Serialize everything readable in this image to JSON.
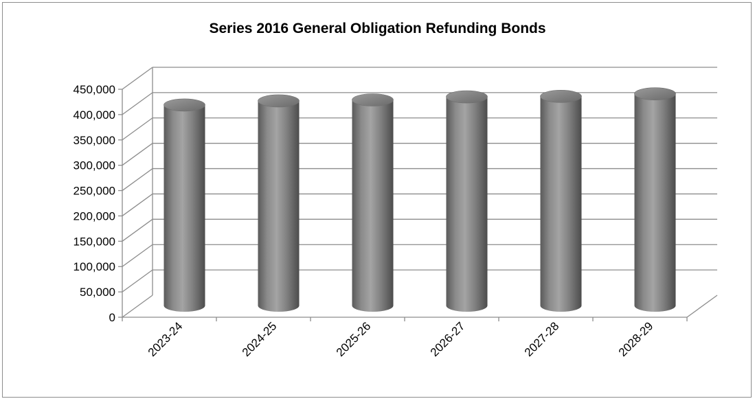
{
  "chart_data": {
    "type": "bar",
    "style": "3d-cylinder",
    "title": "Series 2016 General Obligation Refunding Bonds",
    "xlabel": "",
    "ylabel": "",
    "categories": [
      "2023-24",
      "2024-25",
      "2025-26",
      "2026-27",
      "2027-28",
      "2028-29"
    ],
    "series": [
      {
        "values": [
          400000,
          408000,
          410000,
          416000,
          417000,
          422000
        ]
      }
    ],
    "ylim": [
      0,
      450000
    ],
    "yticks": [
      0,
      50000,
      100000,
      150000,
      200000,
      250000,
      300000,
      350000,
      400000,
      450000
    ],
    "ytick_labels": [
      "0",
      "50,000",
      "100,000",
      "150,000",
      "200,000",
      "250,000",
      "300,000",
      "350,000",
      "400,000",
      "450,000"
    ],
    "grid": true,
    "legend": "none",
    "colors": {
      "bar": "#7f7f7f",
      "grid": "#8c8c8c",
      "frame": "#8c8c8c"
    }
  }
}
